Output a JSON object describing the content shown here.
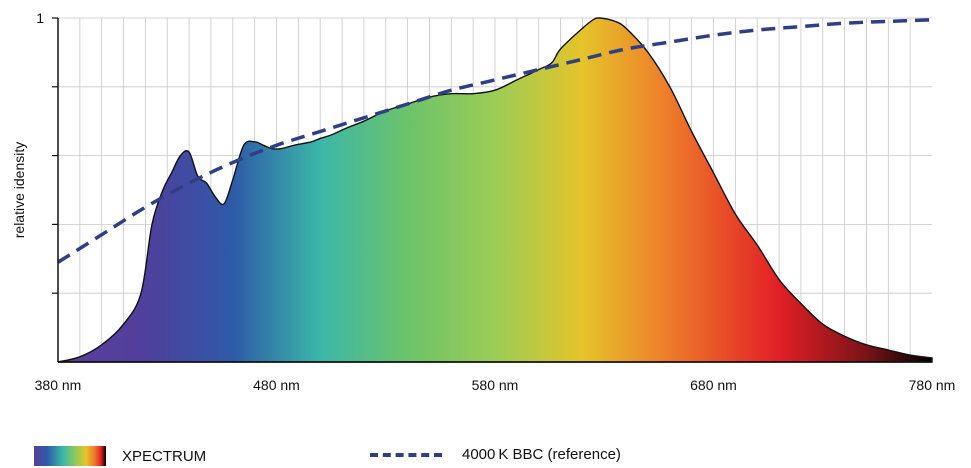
{
  "chart_data": {
    "type": "area",
    "title": "",
    "xlabel": "",
    "ylabel": "relative idensity",
    "xlim": [
      380,
      780
    ],
    "ylim": [
      0,
      1
    ],
    "x_ticks": [
      {
        "value": 380,
        "label": "380 nm"
      },
      {
        "value": 480,
        "label": "480 nm"
      },
      {
        "value": 580,
        "label": "580 nm"
      },
      {
        "value": 680,
        "label": "680 nm"
      },
      {
        "value": 780,
        "label": "780 nm"
      }
    ],
    "y_ticks": [
      {
        "value": 1,
        "label": "1"
      }
    ],
    "grid": true,
    "colors": {
      "reference_line": "#2f3f86",
      "outline": "#111111",
      "grid": "#c8c8c8",
      "spectrum_stops": [
        {
          "nm": 380,
          "color": "#5a3f9c"
        },
        {
          "nm": 420,
          "color": "#503f9c"
        },
        {
          "nm": 460,
          "color": "#2e5aa8"
        },
        {
          "nm": 500,
          "color": "#3bb7a8"
        },
        {
          "nm": 540,
          "color": "#6cc36a"
        },
        {
          "nm": 580,
          "color": "#9bcc56"
        },
        {
          "nm": 620,
          "color": "#e5c42a"
        },
        {
          "nm": 660,
          "color": "#ee7a2a"
        },
        {
          "nm": 710,
          "color": "#e21f26"
        },
        {
          "nm": 750,
          "color": "#7a1418"
        },
        {
          "nm": 780,
          "color": "#000000"
        }
      ]
    },
    "series": [
      {
        "name": "XPECTRUM",
        "style": "spectrum-fill",
        "x": [
          380,
          390,
          400,
          410,
          418,
          423,
          428,
          432,
          436,
          440,
          444,
          448,
          452,
          456,
          460,
          465,
          470,
          474,
          478,
          482,
          488,
          496,
          500,
          505,
          512,
          520,
          530,
          540,
          550,
          560,
          570,
          580,
          590,
          600,
          606,
          610,
          620,
          625,
          628,
          635,
          640,
          650,
          660,
          670,
          680,
          690,
          700,
          710,
          720,
          730,
          740,
          750,
          760,
          770,
          780
        ],
        "values": [
          0.0,
          0.015,
          0.05,
          0.11,
          0.2,
          0.4,
          0.5,
          0.55,
          0.6,
          0.61,
          0.54,
          0.52,
          0.48,
          0.46,
          0.53,
          0.63,
          0.64,
          0.63,
          0.62,
          0.62,
          0.63,
          0.64,
          0.65,
          0.66,
          0.68,
          0.7,
          0.73,
          0.75,
          0.77,
          0.78,
          0.78,
          0.79,
          0.82,
          0.85,
          0.87,
          0.91,
          0.97,
          0.995,
          1.0,
          0.99,
          0.97,
          0.9,
          0.8,
          0.67,
          0.55,
          0.43,
          0.34,
          0.24,
          0.17,
          0.11,
          0.075,
          0.05,
          0.035,
          0.02,
          0.012
        ]
      },
      {
        "name": "4000 K BBC (reference)",
        "style": "dashed",
        "x": [
          380,
          400,
          420,
          440,
          460,
          480,
          500,
          520,
          540,
          560,
          580,
          600,
          620,
          640,
          660,
          680,
          700,
          720,
          740,
          760,
          780
        ],
        "values": [
          0.29,
          0.37,
          0.45,
          0.52,
          0.58,
          0.63,
          0.67,
          0.71,
          0.75,
          0.79,
          0.82,
          0.85,
          0.88,
          0.91,
          0.93,
          0.95,
          0.965,
          0.975,
          0.985,
          0.99,
          0.995
        ]
      }
    ]
  },
  "legend": {
    "spectrum_label": "XPECTRUM",
    "reference_label": "4000 K BBC (reference)"
  }
}
